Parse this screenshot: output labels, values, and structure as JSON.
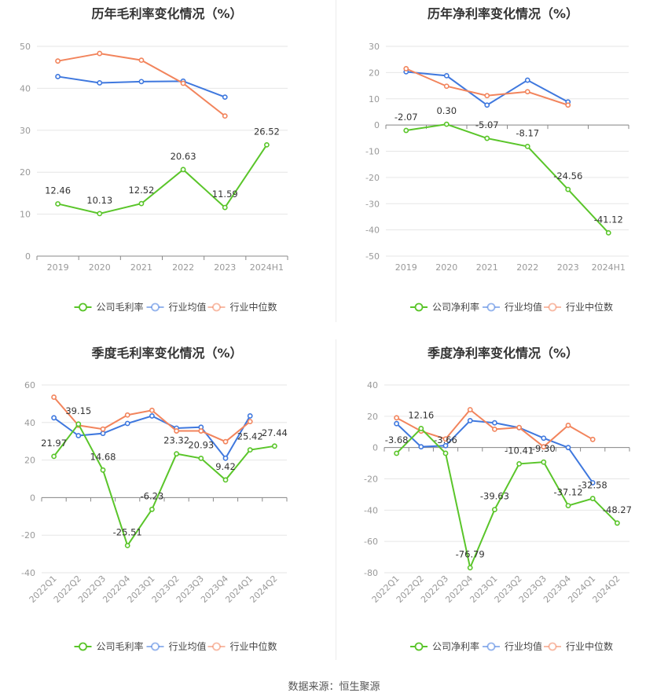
{
  "footer": {
    "source_label": "数据来源：恒生聚源"
  },
  "colors": {
    "company": "#5ac52a",
    "industry_avg": "#3f78de",
    "industry_median": "#f2845c",
    "grid": "#e6e6e6",
    "axis": "#999999"
  },
  "chart_data": [
    {
      "id": "annual-gross",
      "type": "line",
      "title": "历年毛利率变化情况（%）",
      "categories": [
        "2019",
        "2020",
        "2021",
        "2022",
        "2023",
        "2024H1"
      ],
      "ylim": [
        0,
        50
      ],
      "yticks": [
        0,
        10,
        20,
        30,
        40,
        50
      ],
      "rotate_labels": false,
      "grid": true,
      "legend_position": "bottom",
      "series": [
        {
          "name": "公司毛利率",
          "color": "#5ac52a",
          "values": [
            12.46,
            10.13,
            12.52,
            20.63,
            11.59,
            26.52
          ],
          "labels": [
            "12.46",
            "10.13",
            "12.52",
            "20.63",
            "11.59",
            "26.52"
          ],
          "label_dy": [
            -13,
            -13,
            -13,
            -13,
            -13,
            -13
          ]
        },
        {
          "name": "行业均值",
          "color": "#3f78de",
          "values": [
            42.8,
            41.3,
            41.6,
            41.7,
            37.9,
            null
          ]
        },
        {
          "name": "行业中位数",
          "color": "#f2845c",
          "values": [
            46.5,
            48.3,
            46.7,
            41.2,
            33.4,
            null
          ]
        }
      ]
    },
    {
      "id": "annual-net",
      "type": "line",
      "title": "历年净利率变化情况（%）",
      "categories": [
        "2019",
        "2020",
        "2021",
        "2022",
        "2023",
        "2024H1"
      ],
      "ylim": [
        -50,
        30
      ],
      "yticks": [
        -50,
        -40,
        -30,
        -20,
        -10,
        0,
        10,
        20,
        30
      ],
      "rotate_labels": false,
      "grid": true,
      "legend_position": "bottom",
      "series": [
        {
          "name": "公司净利率",
          "color": "#5ac52a",
          "values": [
            -2.07,
            0.3,
            -5.07,
            -8.17,
            -24.56,
            -41.12
          ],
          "labels": [
            "-2.07",
            "0.30",
            "-5.07",
            "-8.17",
            "-24.56",
            "-41.12"
          ],
          "label_dy": [
            -13,
            -13,
            -13,
            -13,
            -13,
            -13
          ]
        },
        {
          "name": "行业均值",
          "color": "#3f78de",
          "values": [
            20.3,
            18.8,
            7.6,
            17.1,
            8.8,
            null
          ]
        },
        {
          "name": "行业中位数",
          "color": "#f2845c",
          "values": [
            21.5,
            14.8,
            11.2,
            12.7,
            7.6,
            null
          ]
        }
      ]
    },
    {
      "id": "quarterly-gross",
      "type": "line",
      "title": "季度毛利率变化情况（%）",
      "categories": [
        "2022Q1",
        "2022Q2",
        "2022Q3",
        "2022Q4",
        "2023Q1",
        "2023Q2",
        "2023Q3",
        "2023Q4",
        "2024Q1",
        "2024Q2"
      ],
      "ylim": [
        -40,
        60
      ],
      "yticks": [
        -40,
        -20,
        0,
        20,
        40,
        60
      ],
      "rotate_labels": true,
      "grid": true,
      "legend_position": "bottom",
      "series": [
        {
          "name": "公司毛利率",
          "color": "#5ac52a",
          "values": [
            21.97,
            39.15,
            14.68,
            -25.51,
            -6.23,
            23.32,
            20.93,
            9.42,
            25.42,
            27.44
          ],
          "labels": [
            "21.97",
            "39.15",
            "14.68",
            "-25.51",
            "-6.23",
            "23.32",
            "20.93",
            "9.42",
            "25.42",
            "27.44"
          ],
          "label_dy": [
            -13,
            -13,
            -13,
            -13,
            -13,
            -13,
            -13,
            -13,
            -13,
            -13
          ]
        },
        {
          "name": "行业均值",
          "color": "#3f78de",
          "values": [
            42.5,
            33.0,
            34.2,
            39.5,
            43.5,
            37.0,
            37.5,
            21.0,
            43.5,
            null
          ]
        },
        {
          "name": "行业中位数",
          "color": "#f2845c",
          "values": [
            53.5,
            38.5,
            36.5,
            44.0,
            46.5,
            35.5,
            35.5,
            29.8,
            40.5,
            null
          ]
        }
      ]
    },
    {
      "id": "quarterly-net",
      "type": "line",
      "title": "季度净利率变化情况（%）",
      "categories": [
        "2022Q1",
        "2022Q2",
        "2022Q3",
        "2022Q4",
        "2023Q1",
        "2023Q2",
        "2023Q3",
        "2023Q4",
        "2024Q1",
        "2024Q2"
      ],
      "ylim": [
        -80,
        40
      ],
      "yticks": [
        -80,
        -60,
        -40,
        -20,
        0,
        20,
        40
      ],
      "rotate_labels": true,
      "grid": true,
      "legend_position": "bottom",
      "series": [
        {
          "name": "公司净利率",
          "color": "#5ac52a",
          "values": [
            -3.68,
            12.16,
            -3.66,
            -76.79,
            -39.63,
            -10.41,
            -9.3,
            -37.12,
            -32.58,
            -48.27
          ],
          "labels": [
            "-3.68",
            "12.16",
            "-3.66",
            "-76.79",
            "-39.63",
            "-10.41",
            "-9.30",
            "-37.12",
            "-32.58",
            "-48.27"
          ],
          "label_dy": [
            -13,
            -13,
            -13,
            -13,
            -13,
            -13,
            -13,
            -13,
            -13,
            -13
          ]
        },
        {
          "name": "行业均值",
          "color": "#3f78de",
          "values": [
            15.3,
            0.5,
            1.2,
            17.2,
            15.8,
            12.7,
            6.0,
            0.0,
            -22.5,
            null
          ]
        },
        {
          "name": "行业中位数",
          "color": "#f2845c",
          "values": [
            19.0,
            10.5,
            5.5,
            24.2,
            11.7,
            12.8,
            0.5,
            14.2,
            5.2,
            null
          ]
        }
      ]
    }
  ]
}
